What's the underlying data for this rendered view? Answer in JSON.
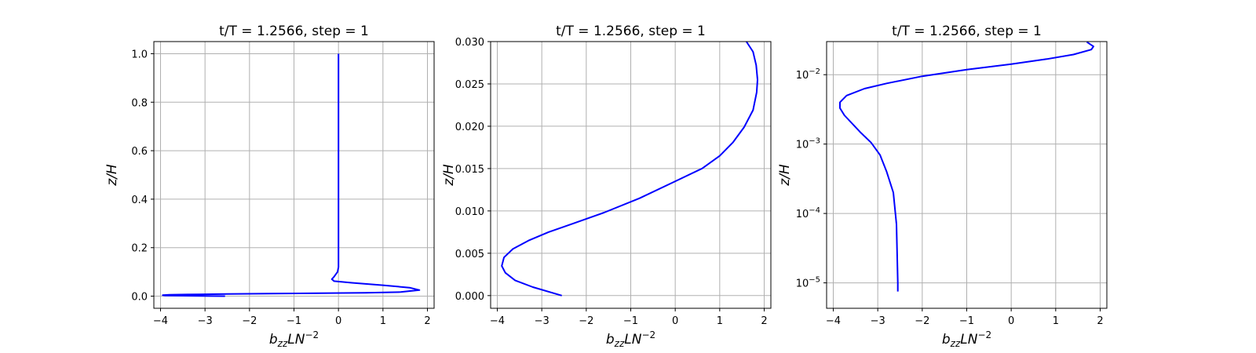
{
  "chart_data": [
    {
      "type": "line",
      "title": "t/T = 1.2566, step = 1",
      "xlabel": {
        "base": "b",
        "sub": "zz",
        "rest": "LN",
        "sup": "−2"
      },
      "ylabel": "z/H",
      "xlim": [
        -4.15,
        2.15
      ],
      "ylim": [
        -0.05,
        1.05
      ],
      "yscale": "linear",
      "xticks": [
        -4,
        -3,
        -2,
        -1,
        0,
        1,
        2
      ],
      "xtick_labels": [
        "−4",
        "−3",
        "−2",
        "−1",
        "0",
        "1",
        "2"
      ],
      "yticks": [
        0.0,
        0.2,
        0.4,
        0.6,
        0.8,
        1.0
      ],
      "ytick_labels": [
        "0.0",
        "0.2",
        "0.4",
        "0.6",
        "0.8",
        "1.0"
      ],
      "grid": true,
      "color": "#0000ff",
      "series": [
        {
          "x": [
            -2.55,
            -3.9,
            -3.95,
            -3.8,
            -3.4,
            -2.5,
            -1.5,
            -0.4,
            0.6,
            1.4,
            1.82,
            1.6,
            1.0,
            0.3,
            -0.1,
            -0.15,
            -0.1,
            -0.02,
            0.0,
            0.0,
            0.0,
            0.0,
            0.0,
            0.0,
            0.0
          ],
          "y": [
            0.0,
            0.0025,
            0.004,
            0.0055,
            0.007,
            0.009,
            0.0105,
            0.012,
            0.014,
            0.017,
            0.025,
            0.035,
            0.045,
            0.055,
            0.062,
            0.07,
            0.08,
            0.1,
            0.12,
            0.2,
            0.4,
            0.6,
            0.8,
            0.95,
            1.0
          ]
        }
      ]
    },
    {
      "type": "line",
      "title": "t/T = 1.2566, step = 1",
      "xlabel": {
        "base": "b",
        "sub": "zz",
        "rest": "LN",
        "sup": "−2"
      },
      "ylabel": "z/H",
      "xlim": [
        -4.15,
        2.15
      ],
      "ylim": [
        -0.0015,
        0.03
      ],
      "yscale": "linear",
      "xticks": [
        -4,
        -3,
        -2,
        -1,
        0,
        1,
        2
      ],
      "xtick_labels": [
        "−4",
        "−3",
        "−2",
        "−1",
        "0",
        "1",
        "2"
      ],
      "yticks": [
        0.0,
        0.005,
        0.01,
        0.015,
        0.02,
        0.025,
        0.03
      ],
      "ytick_labels": [
        "0.000",
        "0.005",
        "0.010",
        "0.015",
        "0.020",
        "0.025",
        "0.030"
      ],
      "grid": true,
      "color": "#0000ff",
      "series": [
        {
          "x": [
            -2.55,
            -3.2,
            -3.6,
            -3.82,
            -3.9,
            -3.85,
            -3.65,
            -3.3,
            -2.85,
            -2.3,
            -1.6,
            -0.8,
            0.0,
            0.6,
            1.0,
            1.3,
            1.55,
            1.75,
            1.83,
            1.85,
            1.82,
            1.75,
            1.6
          ],
          "y": [
            0.0,
            0.001,
            0.0018,
            0.0027,
            0.0035,
            0.0045,
            0.0055,
            0.0065,
            0.0075,
            0.0085,
            0.0098,
            0.0115,
            0.0135,
            0.015,
            0.0165,
            0.0181,
            0.0199,
            0.0219,
            0.024,
            0.0255,
            0.0272,
            0.0288,
            0.03
          ]
        }
      ]
    },
    {
      "type": "line",
      "title": "t/T = 1.2566, step = 1",
      "xlabel": {
        "base": "b",
        "sub": "zz",
        "rest": "LN",
        "sup": "−2"
      },
      "ylabel": "z/H",
      "xlim": [
        -4.15,
        2.15
      ],
      "ylim": [
        4.3e-06,
        0.03
      ],
      "yscale": "log",
      "xticks": [
        -4,
        -3,
        -2,
        -1,
        0,
        1,
        2
      ],
      "xtick_labels": [
        "−4",
        "−3",
        "−2",
        "−1",
        "0",
        "1",
        "2"
      ],
      "yticks": [
        1e-05,
        0.0001,
        0.001,
        0.01
      ],
      "ytick_labels": [
        {
          "base": "10",
          "sup": "−5"
        },
        {
          "base": "10",
          "sup": "−4"
        },
        {
          "base": "10",
          "sup": "−3"
        },
        {
          "base": "10",
          "sup": "−2"
        }
      ],
      "grid": true,
      "color": "#0000ff",
      "series": [
        {
          "x": [
            -2.55,
            -2.55,
            -2.58,
            -2.65,
            -2.8,
            -2.95,
            -3.15,
            -3.4,
            -3.75,
            -3.85,
            -3.85,
            -3.7,
            -3.3,
            -2.8,
            -2.0,
            -1.0,
            0.0,
            0.8,
            1.4,
            1.8,
            1.85,
            1.7
          ],
          "y": [
            7.5e-06,
            1e-05,
            7e-05,
            0.0002,
            0.0004,
            0.0007,
            0.00105,
            0.0015,
            0.0026,
            0.0033,
            0.004,
            0.005,
            0.0063,
            0.0075,
            0.0095,
            0.0118,
            0.0142,
            0.0168,
            0.0195,
            0.023,
            0.0255,
            0.0295
          ]
        }
      ]
    }
  ]
}
